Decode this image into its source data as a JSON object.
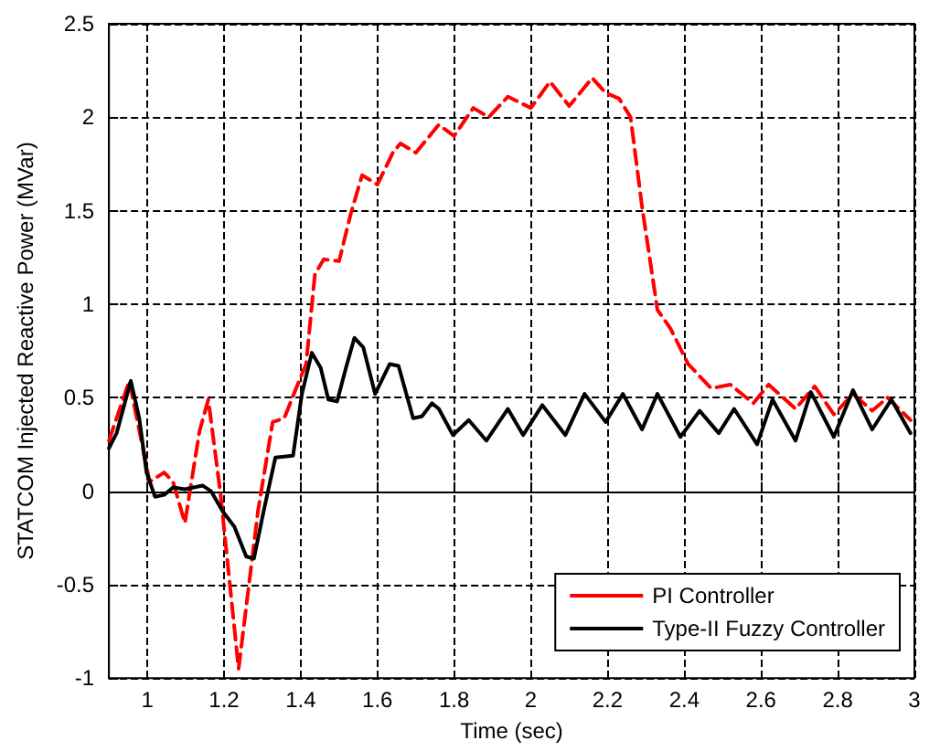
{
  "chart_data": {
    "type": "line",
    "xlabel": "Time (sec)",
    "ylabel": "STATCOM Injected Reactive Power (MVar)",
    "xlim": [
      0.9,
      3
    ],
    "xticks": [
      1,
      1.2,
      1.4,
      1.6,
      1.8,
      2,
      2.2,
      2.4,
      2.6,
      2.8,
      3
    ],
    "ylim": [
      -1,
      2.5
    ],
    "yticks": [
      -1,
      -0.5,
      0,
      0.5,
      1,
      1.5,
      2,
      2.5
    ],
    "grid": true,
    "legend": "bottom right",
    "marker": "none",
    "series": [
      {
        "name": "PI Controller",
        "color": "#ff0000",
        "line_style": "dashed",
        "x": [
          0.9,
          0.953,
          1.006,
          1.044,
          1.067,
          1.098,
          1.136,
          1.159,
          1.19,
          1.238,
          1.289,
          1.327,
          1.357,
          1.388,
          1.414,
          1.437,
          1.46,
          1.5,
          1.53,
          1.56,
          1.6,
          1.64,
          1.66,
          1.7,
          1.76,
          1.8,
          1.85,
          1.89,
          1.94,
          2.0,
          2.05,
          2.1,
          2.16,
          2.195,
          2.23,
          2.26,
          2.29,
          2.33,
          2.364,
          2.41,
          2.47,
          2.52,
          2.58,
          2.62,
          2.69,
          2.74,
          2.79,
          2.84,
          2.89,
          2.93,
          2.99
        ],
        "values": [
          0.27,
          0.59,
          0.05,
          0.1,
          0.05,
          -0.17,
          0.32,
          0.49,
          0,
          -0.95,
          -0.1,
          0.37,
          0.39,
          0.55,
          0.68,
          1.16,
          1.24,
          1.23,
          1.48,
          1.69,
          1.64,
          1.81,
          1.86,
          1.81,
          1.96,
          1.9,
          2.05,
          2.0,
          2.11,
          2.05,
          2.19,
          2.06,
          2.21,
          2.13,
          2.1,
          2.0,
          1.52,
          0.97,
          0.87,
          0.68,
          0.55,
          0.57,
          0.47,
          0.57,
          0.44,
          0.56,
          0.41,
          0.52,
          0.43,
          0.5,
          0.38
        ]
      },
      {
        "name": "Type-II Fuzzy Controller",
        "color": "#000000",
        "line_style": "solid",
        "x": [
          0.9,
          0.92,
          0.957,
          0.979,
          0.998,
          1.02,
          1.044,
          1.067,
          1.098,
          1.144,
          1.166,
          1.197,
          1.227,
          1.258,
          1.278,
          1.304,
          1.334,
          1.38,
          1.403,
          1.429,
          1.452,
          1.472,
          1.495,
          1.518,
          1.54,
          1.563,
          1.594,
          1.632,
          1.655,
          1.693,
          1.716,
          1.742,
          1.76,
          1.797,
          1.838,
          1.884,
          1.94,
          1.98,
          2.03,
          2.09,
          2.14,
          2.195,
          2.24,
          2.29,
          2.33,
          2.39,
          2.44,
          2.49,
          2.53,
          2.59,
          2.63,
          2.69,
          2.73,
          2.79,
          2.84,
          2.89,
          2.94,
          2.99
        ],
        "values": [
          0.23,
          0.31,
          0.59,
          0.39,
          0.1,
          -0.03,
          -0.02,
          0.02,
          0.01,
          0.03,
          0,
          -0.11,
          -0.19,
          -0.35,
          -0.36,
          -0.1,
          0.18,
          0.19,
          0.52,
          0.74,
          0.66,
          0.49,
          0.48,
          0.66,
          0.82,
          0.77,
          0.52,
          0.68,
          0.67,
          0.39,
          0.4,
          0.47,
          0.44,
          0.3,
          0.38,
          0.27,
          0.44,
          0.3,
          0.46,
          0.3,
          0.52,
          0.37,
          0.52,
          0.33,
          0.52,
          0.29,
          0.43,
          0.31,
          0.44,
          0.25,
          0.49,
          0.27,
          0.53,
          0.29,
          0.54,
          0.33,
          0.49,
          0.31
        ]
      }
    ]
  }
}
